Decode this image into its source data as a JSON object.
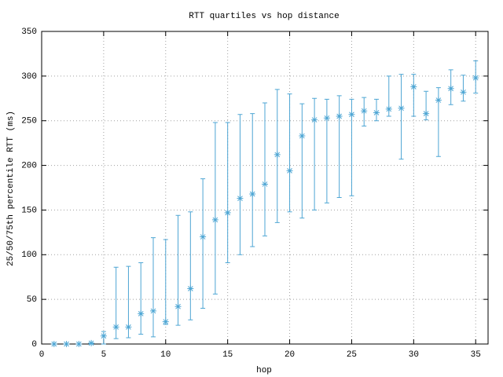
{
  "chart_data": {
    "type": "errorbar",
    "title": "RTT quartiles vs hop distance",
    "x_label": "hop",
    "y_label": "25/50/75th percentile RTT (ms)",
    "x": [
      1,
      2,
      3,
      4,
      5,
      6,
      7,
      8,
      9,
      10,
      11,
      12,
      13,
      14,
      15,
      16,
      17,
      18,
      19,
      20,
      21,
      22,
      23,
      24,
      25,
      26,
      27,
      28,
      29,
      30,
      31,
      32,
      33,
      34,
      35
    ],
    "series": [
      {
        "color": "#4ea6d4",
        "values": [
          0,
          0,
          0,
          1,
          9,
          19,
          19,
          34,
          37,
          25,
          42,
          62,
          120,
          139,
          147,
          163,
          168,
          179,
          212,
          194,
          233,
          251,
          253,
          255,
          257,
          261,
          259,
          263,
          264,
          288,
          258,
          273,
          286,
          282,
          298
        ],
        "low": [
          0,
          0,
          0,
          0,
          0,
          6,
          7,
          11,
          8,
          22,
          21,
          27,
          40,
          56,
          91,
          100,
          109,
          121,
          136,
          148,
          141,
          150,
          158,
          164,
          166,
          244,
          250,
          255,
          207,
          255,
          251,
          210,
          268,
          272,
          281
        ],
        "high": [
          0,
          0,
          0,
          1,
          14,
          86,
          87,
          91,
          119,
          117,
          144,
          148,
          185,
          248,
          248,
          257,
          258,
          270,
          285,
          280,
          269,
          275,
          274,
          278,
          274,
          276,
          274,
          300,
          302,
          302,
          283,
          287,
          307,
          301,
          317
        ]
      }
    ],
    "xlim": [
      0,
      36
    ],
    "ylim": [
      0,
      350
    ],
    "xticks": [
      0,
      5,
      10,
      15,
      20,
      25,
      30,
      35
    ],
    "yticks": [
      0,
      50,
      100,
      150,
      200,
      250,
      300,
      350
    ],
    "grid": true
  }
}
